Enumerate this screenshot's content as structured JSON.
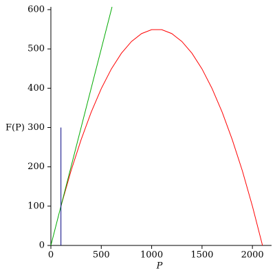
{
  "chart_data": {
    "type": "line",
    "xlabel": "P",
    "ylabel": "F(P)",
    "xlim": [
      0,
      2190
    ],
    "ylim": [
      0,
      600
    ],
    "xticks": [
      0,
      500,
      1000,
      1500,
      2000
    ],
    "yticks": [
      0,
      100,
      200,
      300,
      400,
      500,
      600
    ],
    "series": [
      {
        "color": "#ff0000",
        "x": [
          100,
          200,
          300,
          400,
          500,
          600,
          700,
          800,
          900,
          1000,
          1100,
          1200,
          1300,
          1400,
          1500,
          1600,
          1700,
          1800,
          1900,
          2000,
          2100
        ],
        "values": [
          100,
          190,
          269,
          339,
          399,
          449,
          489,
          519,
          539,
          549,
          549,
          539,
          519,
          489,
          449,
          399,
          339,
          269,
          190,
          100,
          0
        ]
      },
      {
        "color": "#00aa00",
        "x": [
          0,
          607
        ],
        "values": [
          0,
          607
        ]
      },
      {
        "color": "#000080",
        "x": [
          100,
          100
        ],
        "values": [
          0,
          300
        ]
      }
    ]
  }
}
